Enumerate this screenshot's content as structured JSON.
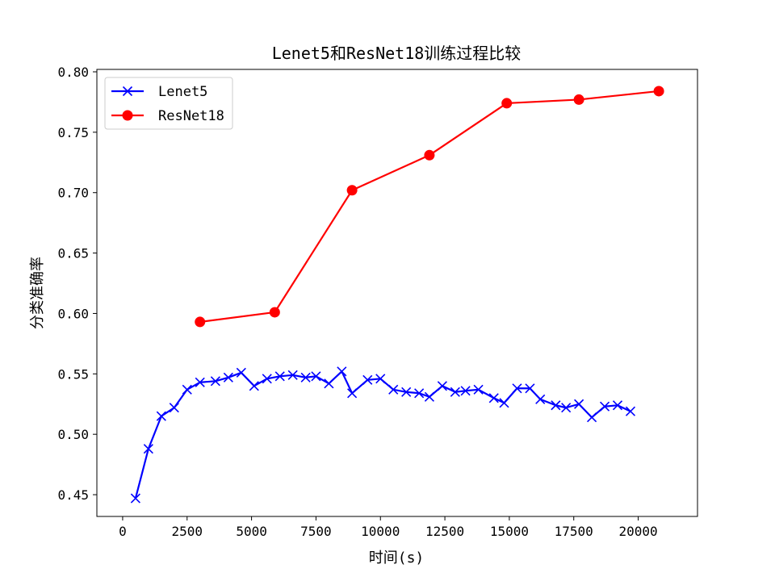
{
  "chart_data": {
    "type": "line",
    "title": "Lenet5和ResNet18训练过程比较",
    "xlabel": "时间(s)",
    "ylabel": "分类准确率",
    "xlim": [
      -1000,
      22300
    ],
    "ylim": [
      0.432,
      0.802
    ],
    "xticks": [
      0,
      2500,
      5000,
      7500,
      10000,
      12500,
      15000,
      17500,
      20000
    ],
    "xtick_labels": [
      "0",
      "2500",
      "5000",
      "7500",
      "10000",
      "12500",
      "15000",
      "17500",
      "20000"
    ],
    "yticks": [
      0.45,
      0.5,
      0.55,
      0.6,
      0.65,
      0.7,
      0.75,
      0.8
    ],
    "ytick_labels": [
      "0.45",
      "0.50",
      "0.55",
      "0.60",
      "0.65",
      "0.70",
      "0.75",
      "0.80"
    ],
    "grid": false,
    "legend_position": "upper-left",
    "series": [
      {
        "name": "Lenet5",
        "color": "#0000ff",
        "marker": "x",
        "x": [
          500,
          1000,
          1500,
          2000,
          2500,
          3000,
          3600,
          4100,
          4600,
          5100,
          5600,
          6100,
          6600,
          7100,
          7500,
          8000,
          8500,
          8900,
          9500,
          10000,
          10500,
          11000,
          11500,
          11900,
          12400,
          12900,
          13300,
          13800,
          14400,
          14800,
          15300,
          15800,
          16200,
          16800,
          17200,
          17700,
          18200,
          18700,
          19200,
          19700
        ],
        "y": [
          0.447,
          0.488,
          0.515,
          0.522,
          0.537,
          0.543,
          0.544,
          0.547,
          0.551,
          0.54,
          0.546,
          0.548,
          0.549,
          0.547,
          0.548,
          0.542,
          0.552,
          0.534,
          0.545,
          0.546,
          0.537,
          0.535,
          0.534,
          0.531,
          0.54,
          0.535,
          0.536,
          0.537,
          0.53,
          0.526,
          0.538,
          0.538,
          0.529,
          0.524,
          0.522,
          0.525,
          0.514,
          0.523,
          0.524,
          0.519
        ]
      },
      {
        "name": "ResNet18",
        "color": "#ff0000",
        "marker": "o",
        "x": [
          3000,
          5900,
          8900,
          11900,
          14900,
          17700,
          20800
        ],
        "y": [
          0.593,
          0.601,
          0.702,
          0.731,
          0.774,
          0.777,
          0.784
        ]
      }
    ]
  }
}
